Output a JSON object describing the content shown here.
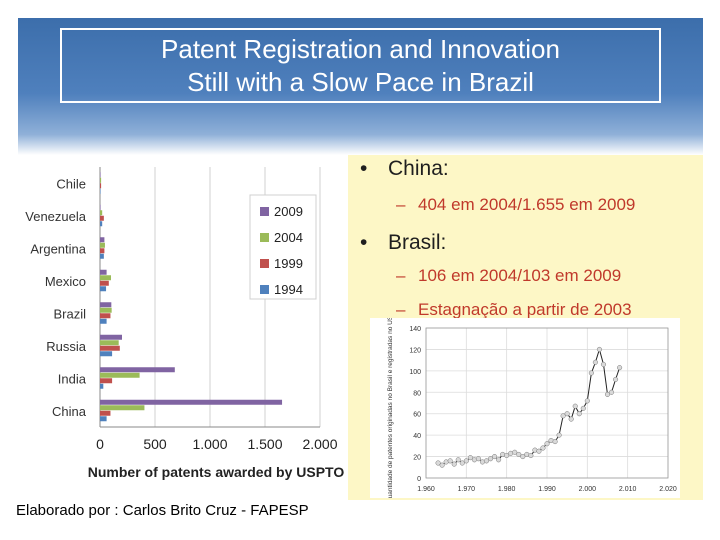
{
  "slide": {
    "title_line1": "Patent Registration and Innovation",
    "title_line2": "Still with a Slow Pace in Brazil",
    "footer": "Elaborado por : Carlos Brito Cruz - FAPESP"
  },
  "bullets": {
    "china": "China:",
    "china_detail": "404 em 2004/1.655 em 2009",
    "brasil": "Brasil:",
    "brasil_detail1": "106 em 2004/103 em 2009",
    "brasil_detail2": "Estagnação a partir de 2003",
    "dash": "–",
    "dot": "•"
  },
  "colors": {
    "s2009": "#8064a2",
    "s2004": "#9bbb59",
    "s1999": "#c0504d",
    "s1994": "#4f81bd"
  },
  "chart_data": [
    {
      "type": "bar",
      "orientation": "horizontal",
      "categories": [
        "Chile",
        "Venezuela",
        "Argentina",
        "Mexico",
        "Brazil",
        "Russia",
        "India",
        "China"
      ],
      "series": [
        {
          "name": "2009",
          "values": [
            5,
            5,
            40,
            60,
            103,
            200,
            680,
            1655
          ]
        },
        {
          "name": "2004",
          "values": [
            10,
            20,
            45,
            100,
            106,
            170,
            360,
            404
          ]
        },
        {
          "name": "1999",
          "values": [
            10,
            35,
            40,
            80,
            95,
            180,
            110,
            95
          ]
        },
        {
          "name": "1994",
          "values": [
            5,
            20,
            35,
            55,
            60,
            110,
            30,
            60
          ]
        }
      ],
      "xlabel": "Number of patents awarded by USPTO",
      "xlim": [
        0,
        2000
      ],
      "xticks": [
        "0",
        "500",
        "1.000",
        "1.500",
        "2.000"
      ],
      "xtick_values": [
        0,
        500,
        1000,
        1500,
        2000
      ],
      "grid": true,
      "legend_position": "right"
    },
    {
      "type": "line",
      "x": [
        1963,
        1964,
        1965,
        1966,
        1967,
        1968,
        1969,
        1970,
        1971,
        1972,
        1973,
        1974,
        1975,
        1976,
        1977,
        1978,
        1979,
        1980,
        1981,
        1982,
        1983,
        1984,
        1985,
        1986,
        1987,
        1988,
        1989,
        1990,
        1991,
        1992,
        1993,
        1994,
        1995,
        1996,
        1997,
        1998,
        1999,
        2000,
        2001,
        2002,
        2003,
        2004,
        2005,
        2006,
        2007,
        2008
      ],
      "y": [
        14,
        12,
        15,
        16,
        13,
        17,
        14,
        16,
        19,
        17,
        18,
        15,
        16,
        18,
        20,
        17,
        22,
        21,
        23,
        24,
        22,
        20,
        22,
        21,
        26,
        25,
        28,
        32,
        35,
        34,
        40,
        58,
        60,
        55,
        67,
        60,
        65,
        72,
        98,
        108,
        120,
        106,
        78,
        80,
        92,
        103
      ],
      "ylabel": "Quantidade de patentes originadas no Brasil e registradas no USPTO",
      "xlim": [
        1960,
        2020
      ],
      "ylim": [
        0,
        140
      ],
      "xticks": [
        "1.960",
        "1.970",
        "1.980",
        "1.990",
        "2.000",
        "2.010",
        "2.020"
      ],
      "xtick_values": [
        1960,
        1970,
        1980,
        1990,
        2000,
        2010,
        2020
      ],
      "yticks": [
        "0",
        "20",
        "40",
        "60",
        "80",
        "100",
        "120",
        "140"
      ],
      "ytick_values": [
        0,
        20,
        40,
        60,
        80,
        100,
        120,
        140
      ],
      "grid": true
    }
  ]
}
